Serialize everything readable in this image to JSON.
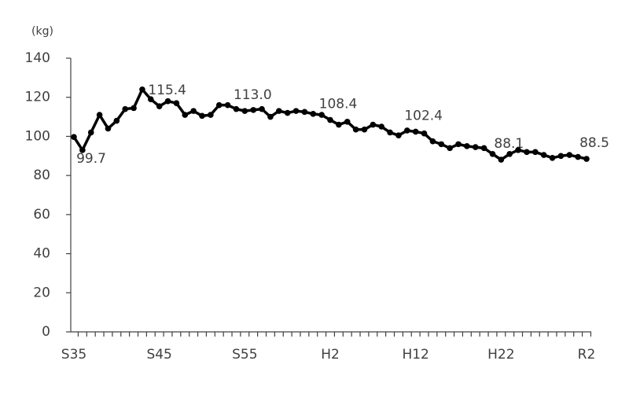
{
  "chart_data": {
    "type": "line",
    "y_label": "(kg)",
    "categories": [
      "S35",
      null,
      null,
      null,
      null,
      null,
      null,
      null,
      null,
      null,
      "S45",
      null,
      null,
      null,
      null,
      null,
      null,
      null,
      null,
      null,
      "S55",
      null,
      null,
      null,
      null,
      null,
      null,
      null,
      null,
      null,
      "H2",
      null,
      null,
      null,
      null,
      null,
      null,
      null,
      null,
      null,
      "H12",
      null,
      null,
      null,
      null,
      null,
      null,
      null,
      null,
      null,
      "H22",
      null,
      null,
      null,
      null,
      null,
      null,
      null,
      null,
      null,
      "R2"
    ],
    "values": [
      99.7,
      93,
      102,
      111,
      104,
      108,
      114,
      114.5,
      124,
      119,
      115.4,
      118,
      117,
      111,
      113,
      110.5,
      111,
      116,
      116,
      114,
      113.0,
      113.5,
      114,
      110,
      113,
      112,
      113,
      112.5,
      111.5,
      111,
      108.4,
      106,
      107.5,
      103.5,
      103.5,
      106,
      105,
      102,
      100.5,
      103,
      102.4,
      101.5,
      97.5,
      96,
      94,
      96,
      95,
      94.5,
      94,
      91,
      88.1,
      91,
      93,
      92,
      92,
      90.5,
      89,
      90,
      90.5,
      89.5,
      88.5
    ],
    "value_labels": [
      "99.7",
      null,
      null,
      null,
      null,
      null,
      null,
      null,
      null,
      null,
      "115.4",
      null,
      null,
      null,
      null,
      null,
      null,
      null,
      null,
      null,
      "113.0",
      null,
      null,
      null,
      null,
      null,
      null,
      null,
      null,
      null,
      "108.4",
      null,
      null,
      null,
      null,
      null,
      null,
      null,
      null,
      null,
      "102.4",
      null,
      null,
      null,
      null,
      null,
      null,
      null,
      null,
      null,
      "88.1",
      null,
      null,
      null,
      null,
      null,
      null,
      null,
      null,
      null,
      "88.5"
    ],
    "color": "#000000",
    "ylim": [
      0,
      140
    ],
    "yticks": [
      0,
      20,
      40,
      60,
      80,
      100,
      120,
      140
    ],
    "grid": false
  }
}
